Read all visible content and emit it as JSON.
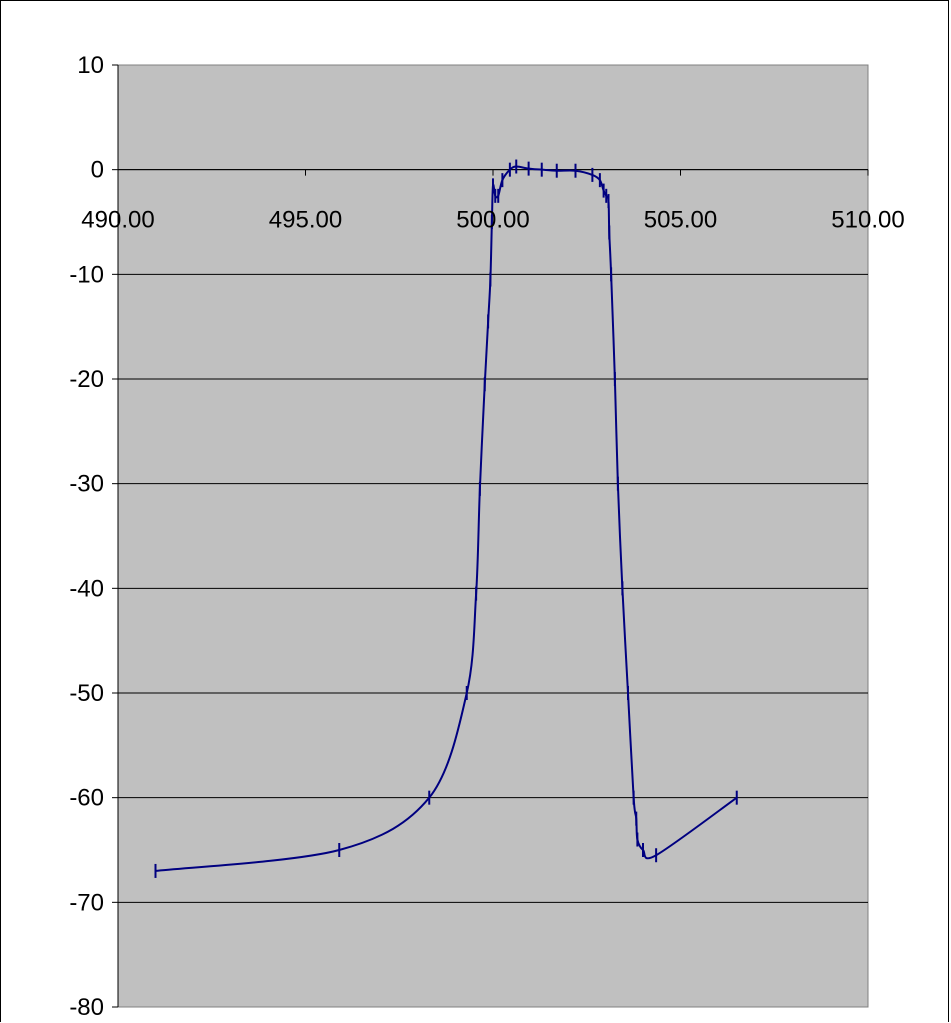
{
  "chart_data": {
    "type": "line",
    "title": "",
    "xlabel": "",
    "ylabel": "",
    "xlim": [
      490,
      510
    ],
    "ylim": [
      -80,
      10
    ],
    "x_ticks": [
      "490.00",
      "495.00",
      "500.00",
      "505.00",
      "510.00"
    ],
    "y_ticks": [
      "10",
      "0",
      "-10",
      "-20",
      "-30",
      "-40",
      "-50",
      "-60",
      "-70",
      "-80"
    ],
    "grid": "horizontal",
    "plot_background": "#c0c0c0",
    "line_color": "#000080",
    "legend": "none",
    "series": [
      {
        "markers": "dash",
        "x": [
          491.0,
          495.9,
          498.3,
          499.3,
          499.55,
          499.65,
          499.78,
          499.87,
          499.93,
          499.97,
          500.0,
          500.06,
          500.14,
          500.25,
          500.45,
          500.62,
          500.95,
          501.3,
          501.7,
          502.2,
          502.65,
          502.85,
          502.95,
          503.02,
          503.08,
          503.1,
          503.15,
          503.25,
          503.33,
          503.45,
          503.6,
          503.75,
          503.82,
          503.85,
          504.0,
          504.35,
          506.5
        ],
        "y": [
          -67,
          -65,
          -60,
          -50,
          -40.5,
          -30.5,
          -20.5,
          -14.5,
          -10.5,
          -5,
          -1.5,
          -2.5,
          -2.5,
          -1,
          0,
          0.3,
          0.1,
          0,
          -0.1,
          -0.1,
          -0.5,
          -1,
          -2,
          -2.5,
          -3,
          -6,
          -10,
          -20,
          -30,
          -40,
          -50,
          -60,
          -62,
          -64,
          -65,
          -65.5,
          -60
        ]
      }
    ]
  }
}
